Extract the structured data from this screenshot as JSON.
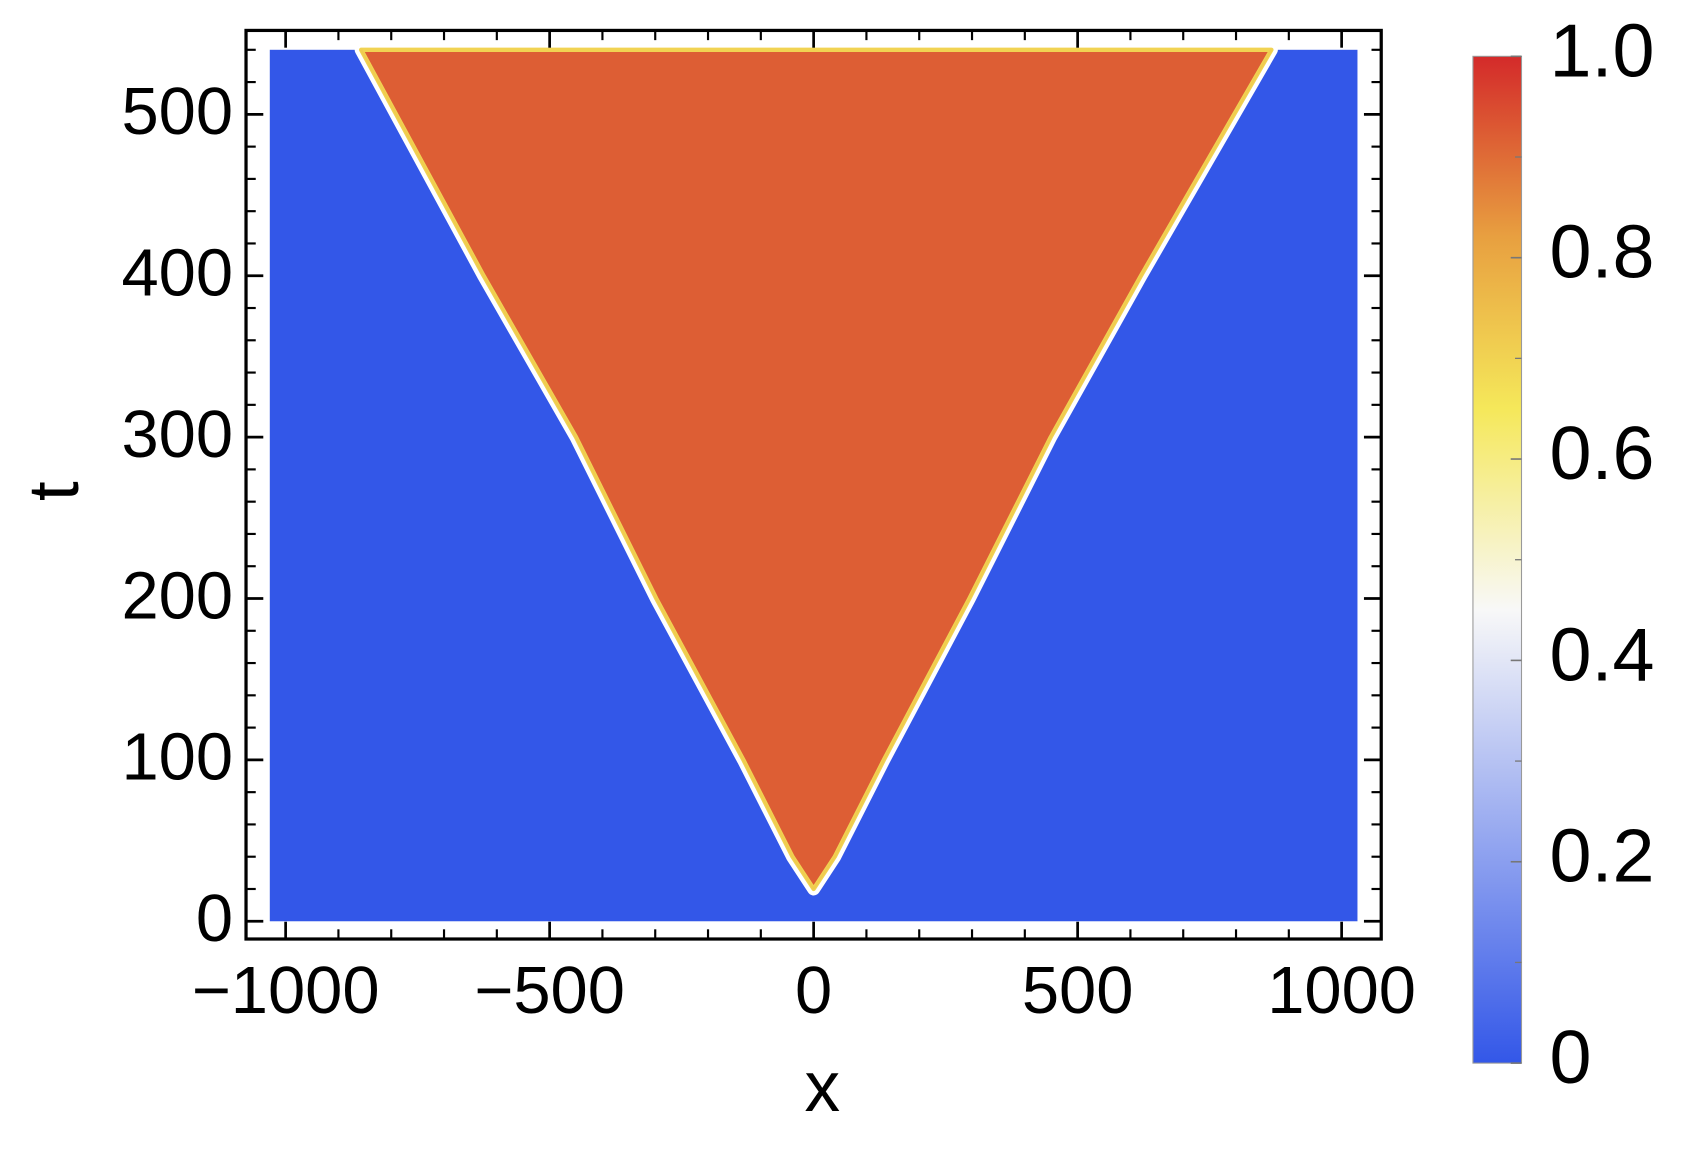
{
  "chart_data": {
    "type": "density",
    "xlabel": "x",
    "ylabel": "t",
    "xlim": [
      -1075,
      1075
    ],
    "ylim": [
      -11,
      552
    ],
    "xticks": [
      {
        "value": -1000,
        "label": "−1000"
      },
      {
        "value": -500,
        "label": "−500"
      },
      0,
      500,
      1000
    ],
    "yticks": [
      0,
      100,
      200,
      300,
      400,
      500
    ],
    "xminorticks": [
      -900,
      -800,
      -700,
      -600,
      -400,
      -300,
      -200,
      -100,
      100,
      200,
      300,
      400,
      600,
      700,
      800,
      900
    ],
    "yminorticks": [
      20,
      40,
      60,
      80,
      120,
      140,
      160,
      180,
      220,
      240,
      260,
      280,
      320,
      340,
      360,
      380,
      420,
      440,
      460,
      480,
      520,
      540
    ],
    "domain_x": [
      -1030,
      1030
    ],
    "domain_t": [
      0,
      540
    ],
    "outside_value": 0,
    "inside_value": 0.92,
    "fronts": {
      "t": [
        20,
        40,
        100,
        200,
        300,
        400,
        540
      ],
      "x_left": [
        0,
        -40,
        -133,
        -298,
        -450,
        -625,
        -857
      ],
      "x_right": [
        0,
        40,
        133,
        295,
        449,
        620,
        867
      ]
    },
    "colormap": [
      {
        "value": 0,
        "color": "#3357e8"
      },
      {
        "value": 0.45,
        "color": "#f8f8f8"
      },
      {
        "value": 0.65,
        "color": "#f5e85a"
      },
      {
        "value": 0.82,
        "color": "#e8a040"
      },
      {
        "value": 1,
        "color": "#d42a2a"
      }
    ],
    "colorbar_lim": [
      0,
      1
    ],
    "colorbar_ticks": [
      0,
      0.2,
      0.4,
      0.6,
      0.8,
      {
        "value": 1,
        "label": "1.0"
      }
    ],
    "colorbar_minor_ticks": [
      0.1,
      0.3,
      0.5,
      0.7,
      0.9
    ]
  }
}
